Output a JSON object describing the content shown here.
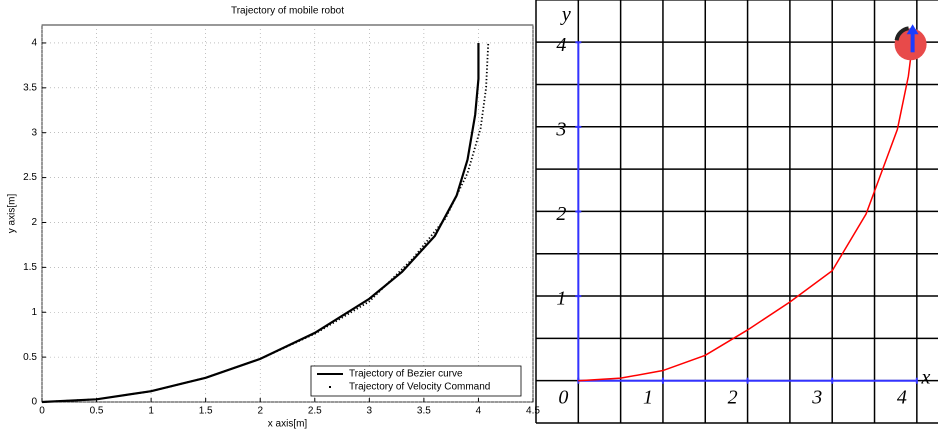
{
  "chart_data": [
    {
      "type": "line",
      "title": "Trajectory of mobile robot",
      "x_label": "x axis[m]",
      "y_label": "y axis[m]",
      "xlim": [
        0,
        4.5
      ],
      "ylim": [
        0,
        4.2
      ],
      "xticks": [
        0,
        0.5,
        1,
        1.5,
        2,
        2.5,
        3,
        3.5,
        4,
        4.5
      ],
      "yticks": [
        0,
        0.5,
        1,
        1.5,
        2,
        2.5,
        3,
        3.5,
        4
      ],
      "grid": true,
      "legend": "lower right",
      "series": [
        {
          "name": "Trajectory of Bezier curve",
          "color": "#000000",
          "style": "solid",
          "x": [
            0,
            0.5,
            1,
            1.5,
            2,
            2.5,
            3,
            3.3,
            3.6,
            3.8,
            3.9,
            3.97,
            4,
            4
          ],
          "values": [
            0,
            0.03,
            0.12,
            0.27,
            0.48,
            0.77,
            1.15,
            1.45,
            1.85,
            2.3,
            2.7,
            3.2,
            3.6,
            4
          ]
        },
        {
          "name": "Trajectory of Velocity Command",
          "color": "#000000",
          "style": "dotted",
          "x": [
            0,
            0.5,
            1,
            1.5,
            2,
            2.5,
            3,
            3.4,
            3.7,
            3.9,
            4.02,
            4.07,
            4.09
          ],
          "values": [
            0,
            0.03,
            0.12,
            0.27,
            0.48,
            0.76,
            1.12,
            1.6,
            2.05,
            2.55,
            3.05,
            3.5,
            4
          ]
        }
      ]
    },
    {
      "type": "line",
      "x_label": "x",
      "y_label": "y",
      "xlim": [
        -0.5,
        4.25
      ],
      "ylim": [
        -0.5,
        4.5
      ],
      "xticks": [
        0,
        1,
        2,
        3,
        4
      ],
      "yticks": [
        1,
        2,
        3,
        4
      ],
      "grid": true,
      "series": [
        {
          "color": "#ff0000",
          "style": "solid",
          "x": [
            0,
            0.5,
            1,
            1.5,
            2,
            2.5,
            3,
            3.4,
            3.77,
            3.9,
            3.95
          ],
          "values": [
            0,
            0.03,
            0.12,
            0.3,
            0.6,
            0.93,
            1.3,
            1.97,
            2.97,
            3.6,
            4
          ]
        }
      ]
    }
  ]
}
